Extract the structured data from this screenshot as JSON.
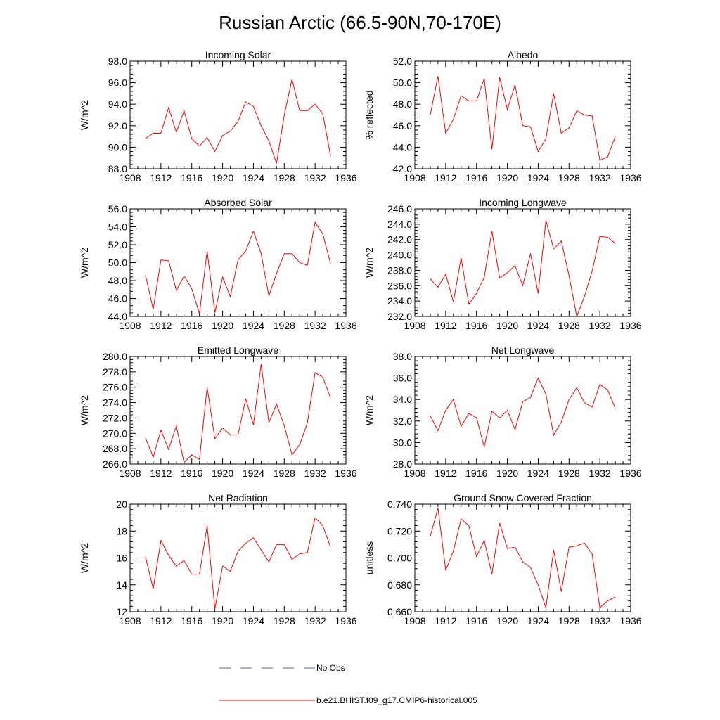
{
  "figure": {
    "title": "Russian Arctic (66.5-90N,70-170E)"
  },
  "colors": {
    "model": "#ff0000",
    "obs": "#4a5cc8"
  },
  "legend": {
    "obs_label": "No Obs",
    "model_label": "b.e21.BHIST.f09_g17.CMIP6-historical.005"
  },
  "chart_data": [
    {
      "type": "line",
      "title": "Incoming Solar",
      "xlabel": "",
      "ylabel": "W/m^2",
      "xlim": [
        1908,
        1936
      ],
      "ylim": [
        88,
        98
      ],
      "decimals": 1,
      "xticks": [
        1908,
        1912,
        1916,
        1920,
        1924,
        1928,
        1932,
        1936
      ],
      "yticks": [
        88,
        90,
        92,
        94,
        96,
        98
      ],
      "x": [
        1910,
        1911,
        1912,
        1913,
        1914,
        1915,
        1916,
        1917,
        1918,
        1919,
        1920,
        1921,
        1922,
        1923,
        1924,
        1925,
        1926,
        1927,
        1928,
        1929,
        1930,
        1931,
        1932,
        1933,
        1934
      ],
      "series": [
        {
          "name": "b.e21.BHIST.f09_g17.CMIP6-historical.005",
          "values": [
            90.8,
            91.3,
            91.3,
            93.7,
            91.4,
            93.4,
            90.8,
            90.1,
            90.9,
            89.6,
            91.1,
            91.5,
            92.4,
            94.2,
            93.8,
            92.0,
            90.6,
            88.5,
            93.0,
            96.3,
            93.4,
            93.4,
            94.0,
            93.1,
            89.2
          ]
        }
      ]
    },
    {
      "type": "line",
      "title": "Albedo",
      "xlabel": "",
      "ylabel": "% reflected",
      "xlim": [
        1908,
        1936
      ],
      "ylim": [
        42,
        52
      ],
      "decimals": 1,
      "xticks": [
        1908,
        1912,
        1916,
        1920,
        1924,
        1928,
        1932,
        1936
      ],
      "yticks": [
        42,
        44,
        46,
        48,
        50,
        52
      ],
      "x": [
        1910,
        1911,
        1912,
        1913,
        1914,
        1915,
        1916,
        1917,
        1918,
        1919,
        1920,
        1921,
        1922,
        1923,
        1924,
        1925,
        1926,
        1927,
        1928,
        1929,
        1930,
        1931,
        1932,
        1933,
        1934
      ],
      "series": [
        {
          "name": "b.e21.BHIST.f09_g17.CMIP6-historical.005",
          "values": [
            47.0,
            50.6,
            45.3,
            46.6,
            48.8,
            48.3,
            48.3,
            50.4,
            43.8,
            50.5,
            47.5,
            49.8,
            46.0,
            45.9,
            43.6,
            44.8,
            49.0,
            45.3,
            45.8,
            47.4,
            47.0,
            46.9,
            42.8,
            43.1,
            45.0
          ]
        }
      ]
    },
    {
      "type": "line",
      "title": "Absorbed Solar",
      "xlabel": "",
      "ylabel": "W/m^2",
      "xlim": [
        1908,
        1936
      ],
      "ylim": [
        44,
        56
      ],
      "decimals": 1,
      "xticks": [
        1908,
        1912,
        1916,
        1920,
        1924,
        1928,
        1932,
        1936
      ],
      "yticks": [
        44,
        46,
        48,
        50,
        52,
        54,
        56
      ],
      "x": [
        1910,
        1911,
        1912,
        1913,
        1914,
        1915,
        1916,
        1917,
        1918,
        1919,
        1920,
        1921,
        1922,
        1923,
        1924,
        1925,
        1926,
        1927,
        1928,
        1929,
        1930,
        1931,
        1932,
        1933,
        1934
      ],
      "series": [
        {
          "name": "b.e21.BHIST.f09_g17.CMIP6-historical.005",
          "values": [
            48.6,
            44.8,
            50.3,
            50.2,
            46.9,
            48.5,
            47.1,
            44.3,
            51.3,
            44.4,
            48.4,
            46.2,
            50.3,
            51.3,
            53.5,
            51.0,
            46.3,
            48.8,
            51.0,
            51.0,
            50.0,
            49.7,
            54.5,
            53.2,
            49.9
          ]
        }
      ]
    },
    {
      "type": "line",
      "title": "Incoming Longwave",
      "xlabel": "",
      "ylabel": "W/m^2",
      "xlim": [
        1908,
        1936
      ],
      "ylim": [
        232,
        246
      ],
      "decimals": 1,
      "xticks": [
        1908,
        1912,
        1916,
        1920,
        1924,
        1928,
        1932,
        1936
      ],
      "yticks": [
        232,
        234,
        236,
        238,
        240,
        242,
        244,
        246
      ],
      "x": [
        1910,
        1911,
        1912,
        1913,
        1914,
        1915,
        1916,
        1917,
        1918,
        1919,
        1920,
        1921,
        1922,
        1923,
        1924,
        1925,
        1926,
        1927,
        1928,
        1929,
        1930,
        1931,
        1932,
        1933,
        1934
      ],
      "series": [
        {
          "name": "b.e21.BHIST.f09_g17.CMIP6-historical.005",
          "values": [
            236.9,
            235.8,
            237.5,
            233.9,
            239.6,
            233.6,
            235.0,
            237.1,
            243.1,
            237.0,
            237.7,
            238.6,
            236.0,
            240.2,
            235.0,
            244.5,
            240.8,
            241.8,
            237.3,
            232.0,
            234.6,
            237.9,
            242.4,
            242.3,
            241.5
          ]
        }
      ]
    },
    {
      "type": "line",
      "title": "Emitted Longwave",
      "xlabel": "",
      "ylabel": "W/m^2",
      "xlim": [
        1908,
        1936
      ],
      "ylim": [
        266,
        280
      ],
      "decimals": 1,
      "xticks": [
        1908,
        1912,
        1916,
        1920,
        1924,
        1928,
        1932,
        1936
      ],
      "yticks": [
        266,
        268,
        270,
        272,
        274,
        276,
        278,
        280
      ],
      "x": [
        1910,
        1911,
        1912,
        1913,
        1914,
        1915,
        1916,
        1917,
        1918,
        1919,
        1920,
        1921,
        1922,
        1923,
        1924,
        1925,
        1926,
        1927,
        1928,
        1929,
        1930,
        1931,
        1932,
        1933,
        1934
      ],
      "series": [
        {
          "name": "b.e21.BHIST.f09_g17.CMIP6-historical.005",
          "values": [
            269.4,
            266.9,
            270.4,
            267.9,
            271.0,
            266.2,
            267.2,
            266.6,
            276.0,
            269.3,
            270.7,
            269.8,
            269.8,
            274.5,
            271.1,
            279.0,
            271.4,
            273.8,
            271.0,
            267.2,
            268.5,
            271.4,
            277.9,
            277.3,
            274.6
          ]
        }
      ]
    },
    {
      "type": "line",
      "title": "Net Longwave",
      "xlabel": "",
      "ylabel": "W/m^2",
      "xlim": [
        1908,
        1936
      ],
      "ylim": [
        28,
        38
      ],
      "decimals": 1,
      "xticks": [
        1908,
        1912,
        1916,
        1920,
        1924,
        1928,
        1932,
        1936
      ],
      "yticks": [
        28,
        30,
        32,
        34,
        36,
        38
      ],
      "x": [
        1910,
        1911,
        1912,
        1913,
        1914,
        1915,
        1916,
        1917,
        1918,
        1919,
        1920,
        1921,
        1922,
        1923,
        1924,
        1925,
        1926,
        1927,
        1928,
        1929,
        1930,
        1931,
        1932,
        1933,
        1934
      ],
      "series": [
        {
          "name": "b.e21.BHIST.f09_g17.CMIP6-historical.005",
          "values": [
            32.5,
            31.1,
            33.0,
            34.0,
            31.5,
            32.7,
            32.3,
            29.6,
            32.9,
            32.3,
            33.0,
            31.2,
            33.8,
            34.2,
            36.0,
            34.5,
            30.7,
            31.9,
            34.0,
            35.1,
            33.7,
            33.3,
            35.4,
            34.9,
            33.2
          ]
        }
      ]
    },
    {
      "type": "line",
      "title": "Net Radiation",
      "xlabel": "",
      "ylabel": "W/m^2",
      "xlim": [
        1908,
        1936
      ],
      "ylim": [
        12,
        20
      ],
      "decimals": 0,
      "xticks": [
        1908,
        1912,
        1916,
        1920,
        1924,
        1928,
        1932,
        1936
      ],
      "yticks": [
        12,
        14,
        16,
        18,
        20
      ],
      "x": [
        1910,
        1911,
        1912,
        1913,
        1914,
        1915,
        1916,
        1917,
        1918,
        1919,
        1920,
        1921,
        1922,
        1923,
        1924,
        1925,
        1926,
        1927,
        1928,
        1929,
        1930,
        1931,
        1932,
        1933,
        1934
      ],
      "series": [
        {
          "name": "b.e21.BHIST.f09_g17.CMIP6-historical.005",
          "values": [
            16.1,
            13.7,
            17.3,
            16.2,
            15.4,
            15.8,
            14.8,
            14.8,
            18.4,
            12.2,
            15.4,
            15.0,
            16.5,
            17.1,
            17.5,
            16.6,
            15.7,
            17.0,
            17.0,
            15.9,
            16.3,
            16.4,
            19.0,
            18.4,
            16.8
          ]
        }
      ]
    },
    {
      "type": "line",
      "title": "Ground Snow Covered Fraction",
      "xlabel": "",
      "ylabel": "unitless",
      "xlim": [
        1908,
        1936
      ],
      "ylim": [
        0.66,
        0.74
      ],
      "decimals": 3,
      "xticks": [
        1908,
        1912,
        1916,
        1920,
        1924,
        1928,
        1932,
        1936
      ],
      "yticks": [
        0.66,
        0.68,
        0.7,
        0.72,
        0.74
      ],
      "x": [
        1910,
        1911,
        1912,
        1913,
        1914,
        1915,
        1916,
        1917,
        1918,
        1919,
        1920,
        1921,
        1922,
        1923,
        1924,
        1925,
        1926,
        1927,
        1928,
        1929,
        1930,
        1931,
        1932,
        1933,
        1934
      ],
      "series": [
        {
          "name": "b.e21.BHIST.f09_g17.CMIP6-historical.005",
          "values": [
            0.716,
            0.737,
            0.691,
            0.705,
            0.729,
            0.724,
            0.701,
            0.713,
            0.688,
            0.726,
            0.707,
            0.708,
            0.697,
            0.693,
            0.68,
            0.663,
            0.706,
            0.675,
            0.708,
            0.709,
            0.711,
            0.703,
            0.663,
            0.668,
            0.671
          ]
        }
      ]
    }
  ]
}
